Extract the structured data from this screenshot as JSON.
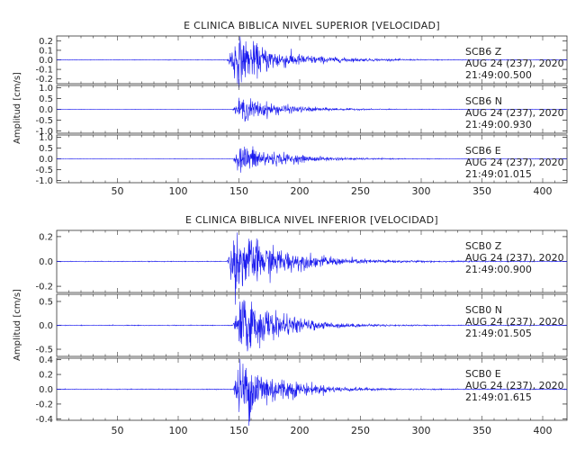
{
  "chart_data": [
    {
      "type": "line",
      "title": "E CLINICA BIBLICA NIVEL SUPERIOR [VELOCIDAD]",
      "ylabel": "Amplitud [cm/s]",
      "xlim": [
        0,
        420
      ],
      "x_ticks": [
        "50",
        "100",
        "150",
        "200",
        "250",
        "300",
        "350",
        "400"
      ],
      "line_color": "#1a1aee",
      "traces": [
        {
          "station": "SCB6",
          "component": "Z",
          "date": "AUG 24 (237), 2020",
          "time": "21:49:00.500",
          "ylim": [
            -0.25,
            0.25
          ],
          "y_ticks": [
            "0.2",
            "0.1",
            "0.0",
            "-0.1",
            "-0.2"
          ],
          "onset": 140,
          "peak_amplitude": 0.2,
          "decay": 35
        },
        {
          "station": "SCB6",
          "component": "N",
          "date": "AUG 24 (237), 2020",
          "time": "21:49:00.930",
          "ylim": [
            -1.1,
            1.1
          ],
          "y_ticks": [
            "1.0",
            "0.5",
            "0.0",
            "-0.5",
            "-1.0"
          ],
          "onset": 145,
          "peak_amplitude": 0.45,
          "decay": 32
        },
        {
          "station": "SCB6",
          "component": "E",
          "date": "AUG 24 (237), 2020",
          "time": "21:49:01.015",
          "ylim": [
            -1.1,
            1.1
          ],
          "y_ticks": [
            "1.0",
            "0.5",
            "0.0",
            "-0.5",
            "-1.0"
          ],
          "onset": 145,
          "peak_amplitude": 0.55,
          "decay": 32
        }
      ]
    },
    {
      "type": "line",
      "title": "E CLINICA BIBLICA NIVEL INFERIOR [VELOCIDAD]",
      "ylabel": "Amplitud [cm/s]",
      "xlim": [
        0,
        420
      ],
      "x_ticks": [
        "50",
        "100",
        "150",
        "200",
        "250",
        "300",
        "350",
        "400"
      ],
      "line_color": "#1a1aee",
      "traces": [
        {
          "station": "SCB0",
          "component": "Z",
          "date": "AUG 24 (237), 2020",
          "time": "21:49:00.900",
          "ylim": [
            -0.25,
            0.25
          ],
          "y_ticks": [
            "0.2",
            "0.0",
            "-0.2"
          ],
          "onset": 140,
          "peak_amplitude": 0.2,
          "decay": 38
        },
        {
          "station": "SCB0",
          "component": "N",
          "date": "AUG 24 (237), 2020",
          "time": "21:49:01.505",
          "ylim": [
            -0.65,
            0.65
          ],
          "y_ticks": [
            "0.5",
            "0.0",
            "-0.5"
          ],
          "onset": 145,
          "peak_amplitude": 0.5,
          "decay": 30
        },
        {
          "station": "SCB0",
          "component": "E",
          "date": "AUG 24 (237), 2020",
          "time": "21:49:01.615",
          "ylim": [
            -0.42,
            0.42
          ],
          "y_ticks": [
            "0.4",
            "0.2",
            "0.0",
            "-0.2",
            "-0.4"
          ],
          "onset": 145,
          "peak_amplitude": 0.35,
          "decay": 30
        }
      ]
    }
  ]
}
